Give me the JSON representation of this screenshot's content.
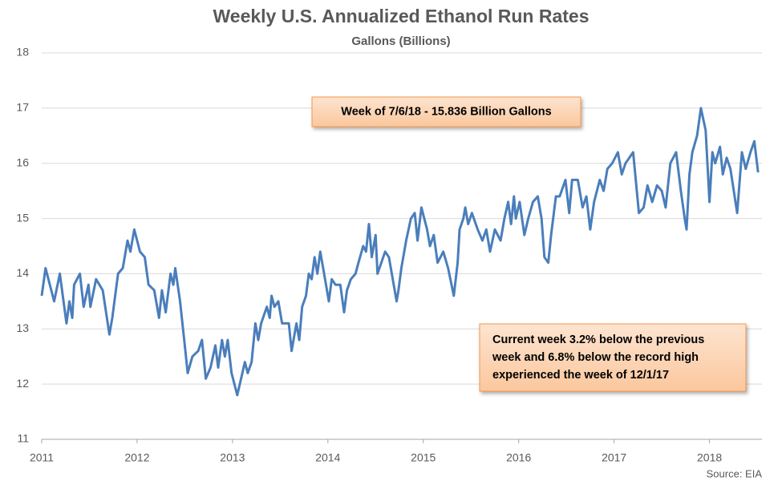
{
  "chart_data": {
    "type": "line",
    "title": "Weekly U.S. Annualized Ethanol Run Rates",
    "subtitle": "Gallons (Billions)",
    "source": "Source: EIA",
    "annotations": [
      {
        "lines": [
          "Week of 7/6/18 - 15.836 Billion Gallons"
        ]
      },
      {
        "lines": [
          "Current week 3.2% below the previous",
          "week and 6.8% below the record high",
          "experienced the week of 12/1/17"
        ]
      }
    ],
    "xlim": [
      2011,
      2018.55
    ],
    "xticks": [
      2011,
      2012,
      2013,
      2014,
      2015,
      2016,
      2017,
      2018
    ],
    "ylim": [
      11,
      18
    ],
    "yticks": [
      11,
      12,
      13,
      14,
      15,
      16,
      17,
      18
    ],
    "grid": true,
    "series": [
      {
        "name": "Run Rate",
        "color": "#4a7ebb",
        "x": [
          2011.0,
          2011.04,
          2011.13,
          2011.19,
          2011.26,
          2011.29,
          2011.32,
          2011.34,
          2011.4,
          2011.44,
          2011.49,
          2011.51,
          2011.57,
          2011.64,
          2011.71,
          2011.74,
          2011.8,
          2011.85,
          2011.9,
          2011.93,
          2011.97,
          2012.03,
          2012.08,
          2012.12,
          2012.18,
          2012.23,
          2012.26,
          2012.3,
          2012.35,
          2012.38,
          2012.4,
          2012.45,
          2012.5,
          2012.53,
          2012.58,
          2012.64,
          2012.68,
          2012.72,
          2012.77,
          2012.82,
          2012.85,
          2012.89,
          2012.92,
          2012.95,
          2012.99,
          2013.05,
          2013.09,
          2013.13,
          2013.16,
          2013.2,
          2013.24,
          2013.27,
          2013.3,
          2013.36,
          2013.39,
          2013.41,
          2013.44,
          2013.48,
          2013.52,
          2013.59,
          2013.62,
          2013.67,
          2013.7,
          2013.73,
          2013.77,
          2013.8,
          2013.83,
          2013.86,
          2013.89,
          2013.92,
          2013.96,
          2014.01,
          2014.04,
          2014.08,
          2014.13,
          2014.17,
          2014.2,
          2014.24,
          2014.29,
          2014.32,
          2014.37,
          2014.4,
          2014.43,
          2014.46,
          2014.5,
          2014.52,
          2014.6,
          2014.64,
          2014.72,
          2014.74,
          2014.77,
          2014.82,
          2014.87,
          2014.91,
          2014.94,
          2014.98,
          2015.04,
          2015.07,
          2015.11,
          2015.15,
          2015.21,
          2015.26,
          2015.32,
          2015.36,
          2015.38,
          2015.42,
          2015.44,
          2015.47,
          2015.51,
          2015.57,
          2015.62,
          2015.66,
          2015.7,
          2015.75,
          2015.81,
          2015.85,
          2015.89,
          2015.92,
          2015.95,
          2015.97,
          2016.01,
          2016.06,
          2016.1,
          2016.15,
          2016.2,
          2016.24,
          2016.27,
          2016.31,
          2016.34,
          2016.39,
          2016.43,
          2016.49,
          2016.53,
          2016.56,
          2016.62,
          2016.67,
          2016.71,
          2016.75,
          2016.79,
          2016.85,
          2016.89,
          2016.93,
          2016.98,
          2017.04,
          2017.08,
          2017.12,
          2017.2,
          2017.26,
          2017.31,
          2017.35,
          2017.4,
          2017.45,
          2017.5,
          2017.54,
          2017.59,
          2017.65,
          2017.7,
          2017.74,
          2017.76,
          2017.79,
          2017.82,
          2017.87,
          2017.91,
          2017.96,
          2018.0,
          2018.03,
          2018.06,
          2018.11,
          2018.14,
          2018.18,
          2018.22,
          2018.29,
          2018.34,
          2018.38,
          2018.43,
          2018.47,
          2018.51
        ],
        "values": [
          13.6,
          14.1,
          13.5,
          14.0,
          13.1,
          13.5,
          13.2,
          13.8,
          14.0,
          13.4,
          13.8,
          13.4,
          13.9,
          13.7,
          12.9,
          13.2,
          14.0,
          14.1,
          14.6,
          14.4,
          14.8,
          14.4,
          14.3,
          13.8,
          13.7,
          13.2,
          13.7,
          13.3,
          14.0,
          13.8,
          14.1,
          13.5,
          12.7,
          12.2,
          12.5,
          12.6,
          12.8,
          12.1,
          12.3,
          12.7,
          12.3,
          12.8,
          12.5,
          12.8,
          12.2,
          11.8,
          12.1,
          12.4,
          12.2,
          12.4,
          13.1,
          12.8,
          13.1,
          13.4,
          13.2,
          13.6,
          13.4,
          13.5,
          13.1,
          13.1,
          12.6,
          13.1,
          12.8,
          13.4,
          13.6,
          14.0,
          13.9,
          14.3,
          14.0,
          14.4,
          14.0,
          13.5,
          13.9,
          13.8,
          13.8,
          13.3,
          13.7,
          13.9,
          14.0,
          14.2,
          14.5,
          14.4,
          14.9,
          14.3,
          14.7,
          14.0,
          14.4,
          14.3,
          13.5,
          13.7,
          14.1,
          14.6,
          15.0,
          15.1,
          14.6,
          15.2,
          14.8,
          14.5,
          14.7,
          14.2,
          14.4,
          14.1,
          13.6,
          14.2,
          14.8,
          15.0,
          15.2,
          14.9,
          15.1,
          14.8,
          14.6,
          14.8,
          14.4,
          14.8,
          14.6,
          15.0,
          15.3,
          14.9,
          15.4,
          15.0,
          15.3,
          14.7,
          15.0,
          15.3,
          15.4,
          15.0,
          14.3,
          14.2,
          14.7,
          15.4,
          15.4,
          15.7,
          15.1,
          15.7,
          15.7,
          15.2,
          15.4,
          14.8,
          15.3,
          15.7,
          15.5,
          15.9,
          16.0,
          16.2,
          15.8,
          16.0,
          16.2,
          15.1,
          15.2,
          15.6,
          15.3,
          15.6,
          15.5,
          15.2,
          16.0,
          16.2,
          15.5,
          15.0,
          14.8,
          15.8,
          16.2,
          16.5,
          17.0,
          16.6,
          15.3,
          16.2,
          16.0,
          16.3,
          15.8,
          16.1,
          15.9,
          15.1,
          16.2,
          15.9,
          16.2,
          16.4,
          15.836
        ]
      }
    ]
  }
}
